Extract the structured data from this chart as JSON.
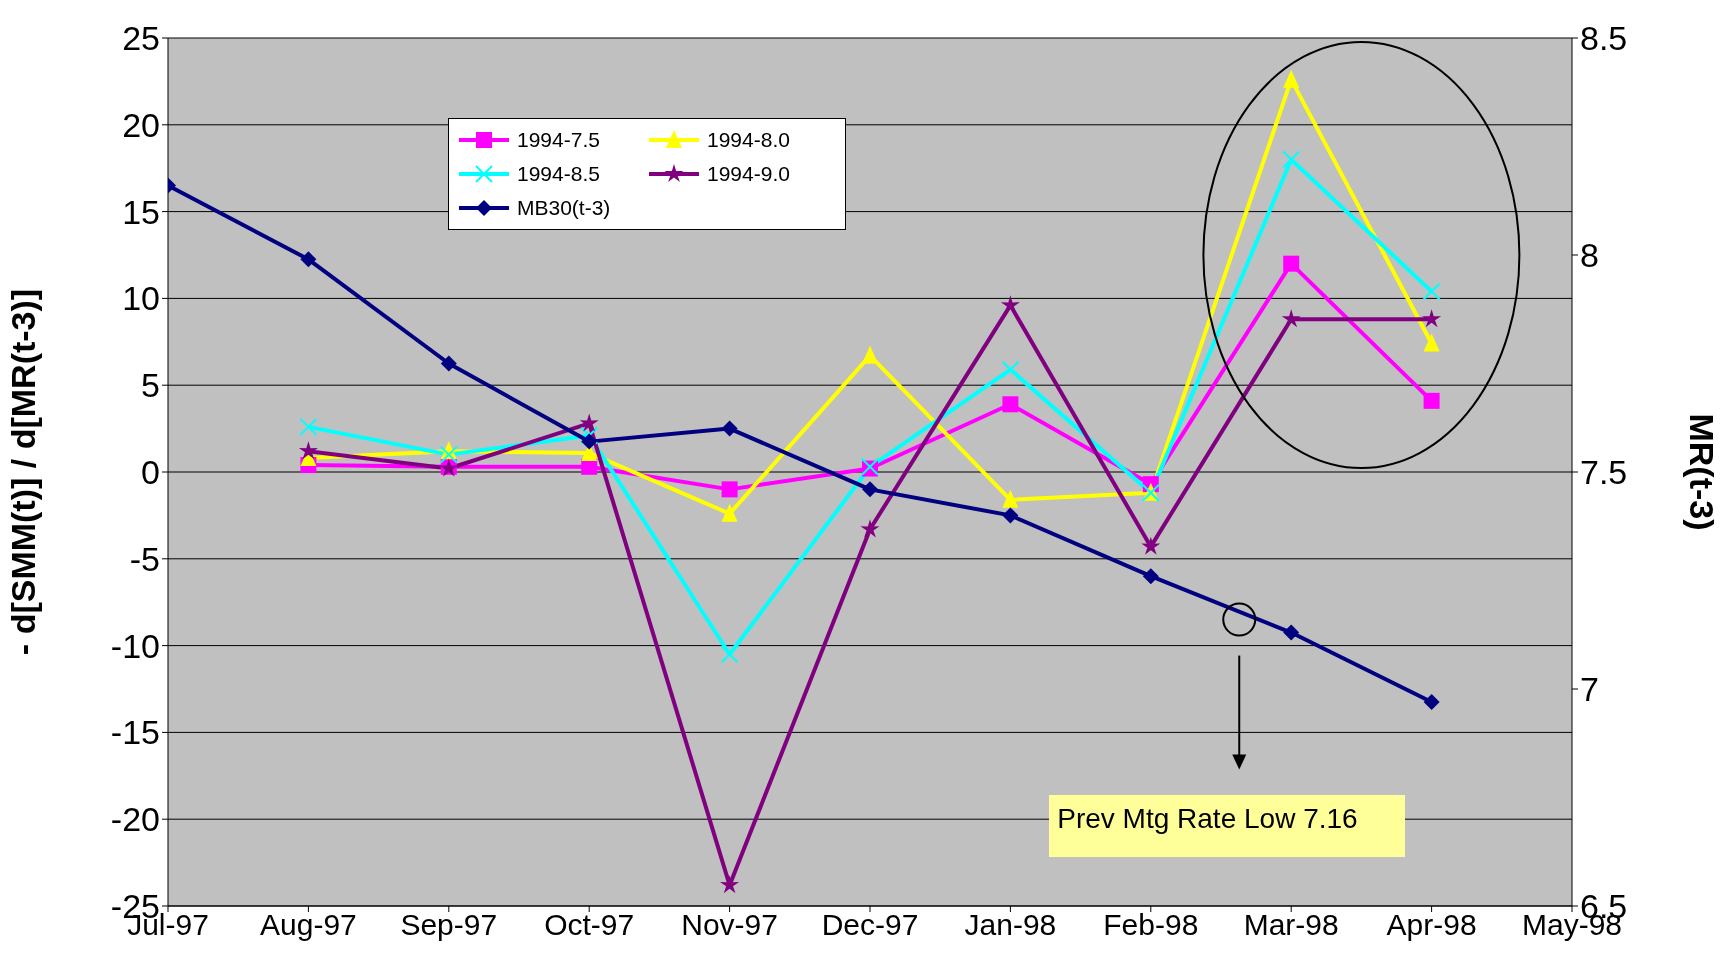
{
  "chart_data": {
    "type": "line",
    "ylabel": "- d[SMM(t)] / d[MR(t-3)]",
    "y2label": "MR(t-3)",
    "categories": [
      "Jul-97",
      "Aug-97",
      "Sep-97",
      "Oct-97",
      "Nov-97",
      "Dec-97",
      "Jan-98",
      "Feb-98",
      "Mar-98",
      "Apr-98",
      "May-98"
    ],
    "series": [
      {
        "name": "1994-7.5",
        "color": "#ff00ff",
        "marker": "square",
        "values": [
          null,
          0.4,
          0.3,
          0.3,
          -1.0,
          0.2,
          3.9,
          -0.7,
          12.0,
          4.1,
          null
        ]
      },
      {
        "name": "1994-8.0",
        "color": "#ffff00",
        "marker": "triangle",
        "values": [
          null,
          0.8,
          1.2,
          1.1,
          -2.4,
          6.7,
          -1.6,
          -1.2,
          22.6,
          7.4,
          null
        ]
      },
      {
        "name": "1994-8.5",
        "color": "#00ffff",
        "marker": "cross",
        "values": [
          null,
          2.6,
          1.0,
          2.1,
          -10.5,
          0.3,
          5.9,
          -1.2,
          18.0,
          10.4,
          null
        ]
      },
      {
        "name": "1994-9.0",
        "color": "#800080",
        "marker": "star",
        "values": [
          null,
          1.2,
          0.2,
          2.8,
          -23.8,
          -3.3,
          9.6,
          -4.3,
          8.8,
          8.8,
          null
        ]
      },
      {
        "name": "MB30(t-3)",
        "color": "#000080",
        "marker": "diamond",
        "axis": "y2",
        "values": [
          8.16,
          7.99,
          7.75,
          7.57,
          7.6,
          7.46,
          7.4,
          7.26,
          7.13,
          6.97,
          null
        ]
      }
    ],
    "ylim": [
      -25,
      25
    ],
    "yticks": [
      -25,
      -20,
      -15,
      -10,
      -5,
      0,
      5,
      10,
      15,
      20,
      25
    ],
    "y2lim": [
      6.5,
      8.5
    ],
    "y2ticks": [
      6.5,
      7,
      7.5,
      8,
      8.5
    ],
    "grid": "y",
    "legend": "top left",
    "line_style": "solid",
    "annotations": [
      "Prev Mtg Rate Low 7.16"
    ]
  }
}
